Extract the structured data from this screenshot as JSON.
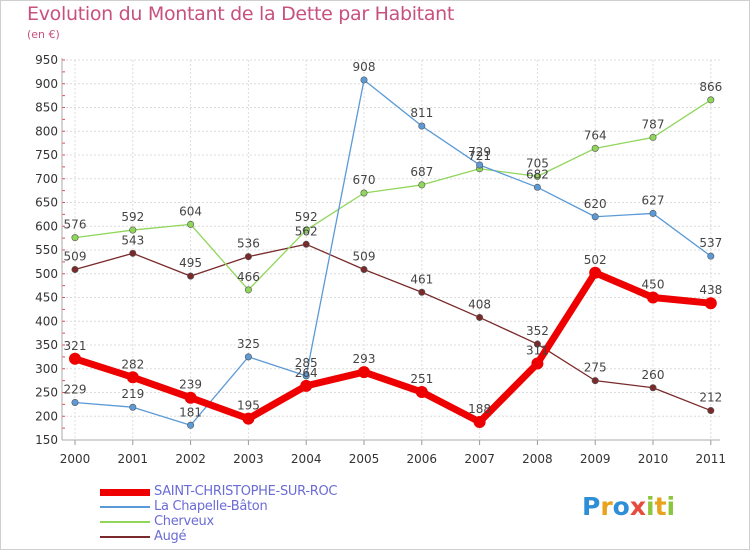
{
  "title": "Evolution du Montant de la Dette par Habitant",
  "subtitle": "(en €)",
  "brand": "Proxiti",
  "chart_data": {
    "type": "line",
    "x": [
      "2000",
      "2001",
      "2002",
      "2003",
      "2004",
      "2005",
      "2006",
      "2007",
      "2008",
      "2009",
      "2010",
      "2011"
    ],
    "ylim": [
      150,
      950
    ],
    "yticks": [
      150,
      200,
      250,
      300,
      350,
      400,
      450,
      500,
      550,
      600,
      650,
      700,
      750,
      800,
      850,
      900,
      950
    ],
    "grid": true,
    "legend_position": "bottom-left",
    "series": [
      {
        "name": "SAINT-CHRISTOPHE-SUR-ROC",
        "color": "#ee0000",
        "values": [
          321,
          282,
          239,
          195,
          264,
          293,
          251,
          188,
          311,
          502,
          450,
          438
        ],
        "labels": [
          "321",
          "282",
          "239",
          "195",
          "264",
          "293",
          "251",
          "188",
          "311",
          "502",
          "450",
          "438"
        ]
      },
      {
        "name": "La Chapelle-Bâton",
        "color": "#5b9ad6",
        "values": [
          229,
          219,
          181,
          325,
          285,
          908,
          811,
          729,
          682,
          620,
          627,
          537
        ],
        "labels": [
          "229",
          "219",
          "181",
          "325",
          "285",
          "908",
          "811",
          "729",
          "682",
          "620",
          "627",
          "537"
        ]
      },
      {
        "name": "Cherveux",
        "color": "#8fd65a",
        "values": [
          576,
          592,
          604,
          466,
          592,
          670,
          687,
          721,
          705,
          764,
          787,
          866
        ],
        "labels": [
          "576",
          "592",
          "604",
          "466",
          "592",
          "670",
          "687",
          "721",
          "705",
          "764",
          "787",
          "866"
        ]
      },
      {
        "name": "Augé",
        "color": "#7a2a2a",
        "values": [
          509,
          543,
          495,
          536,
          562,
          509,
          461,
          408,
          352,
          275,
          260,
          212
        ],
        "labels": [
          "509",
          "543",
          "495",
          "536",
          "562",
          "509",
          "461",
          "408",
          "352",
          "275",
          "260",
          "212"
        ]
      }
    ]
  }
}
